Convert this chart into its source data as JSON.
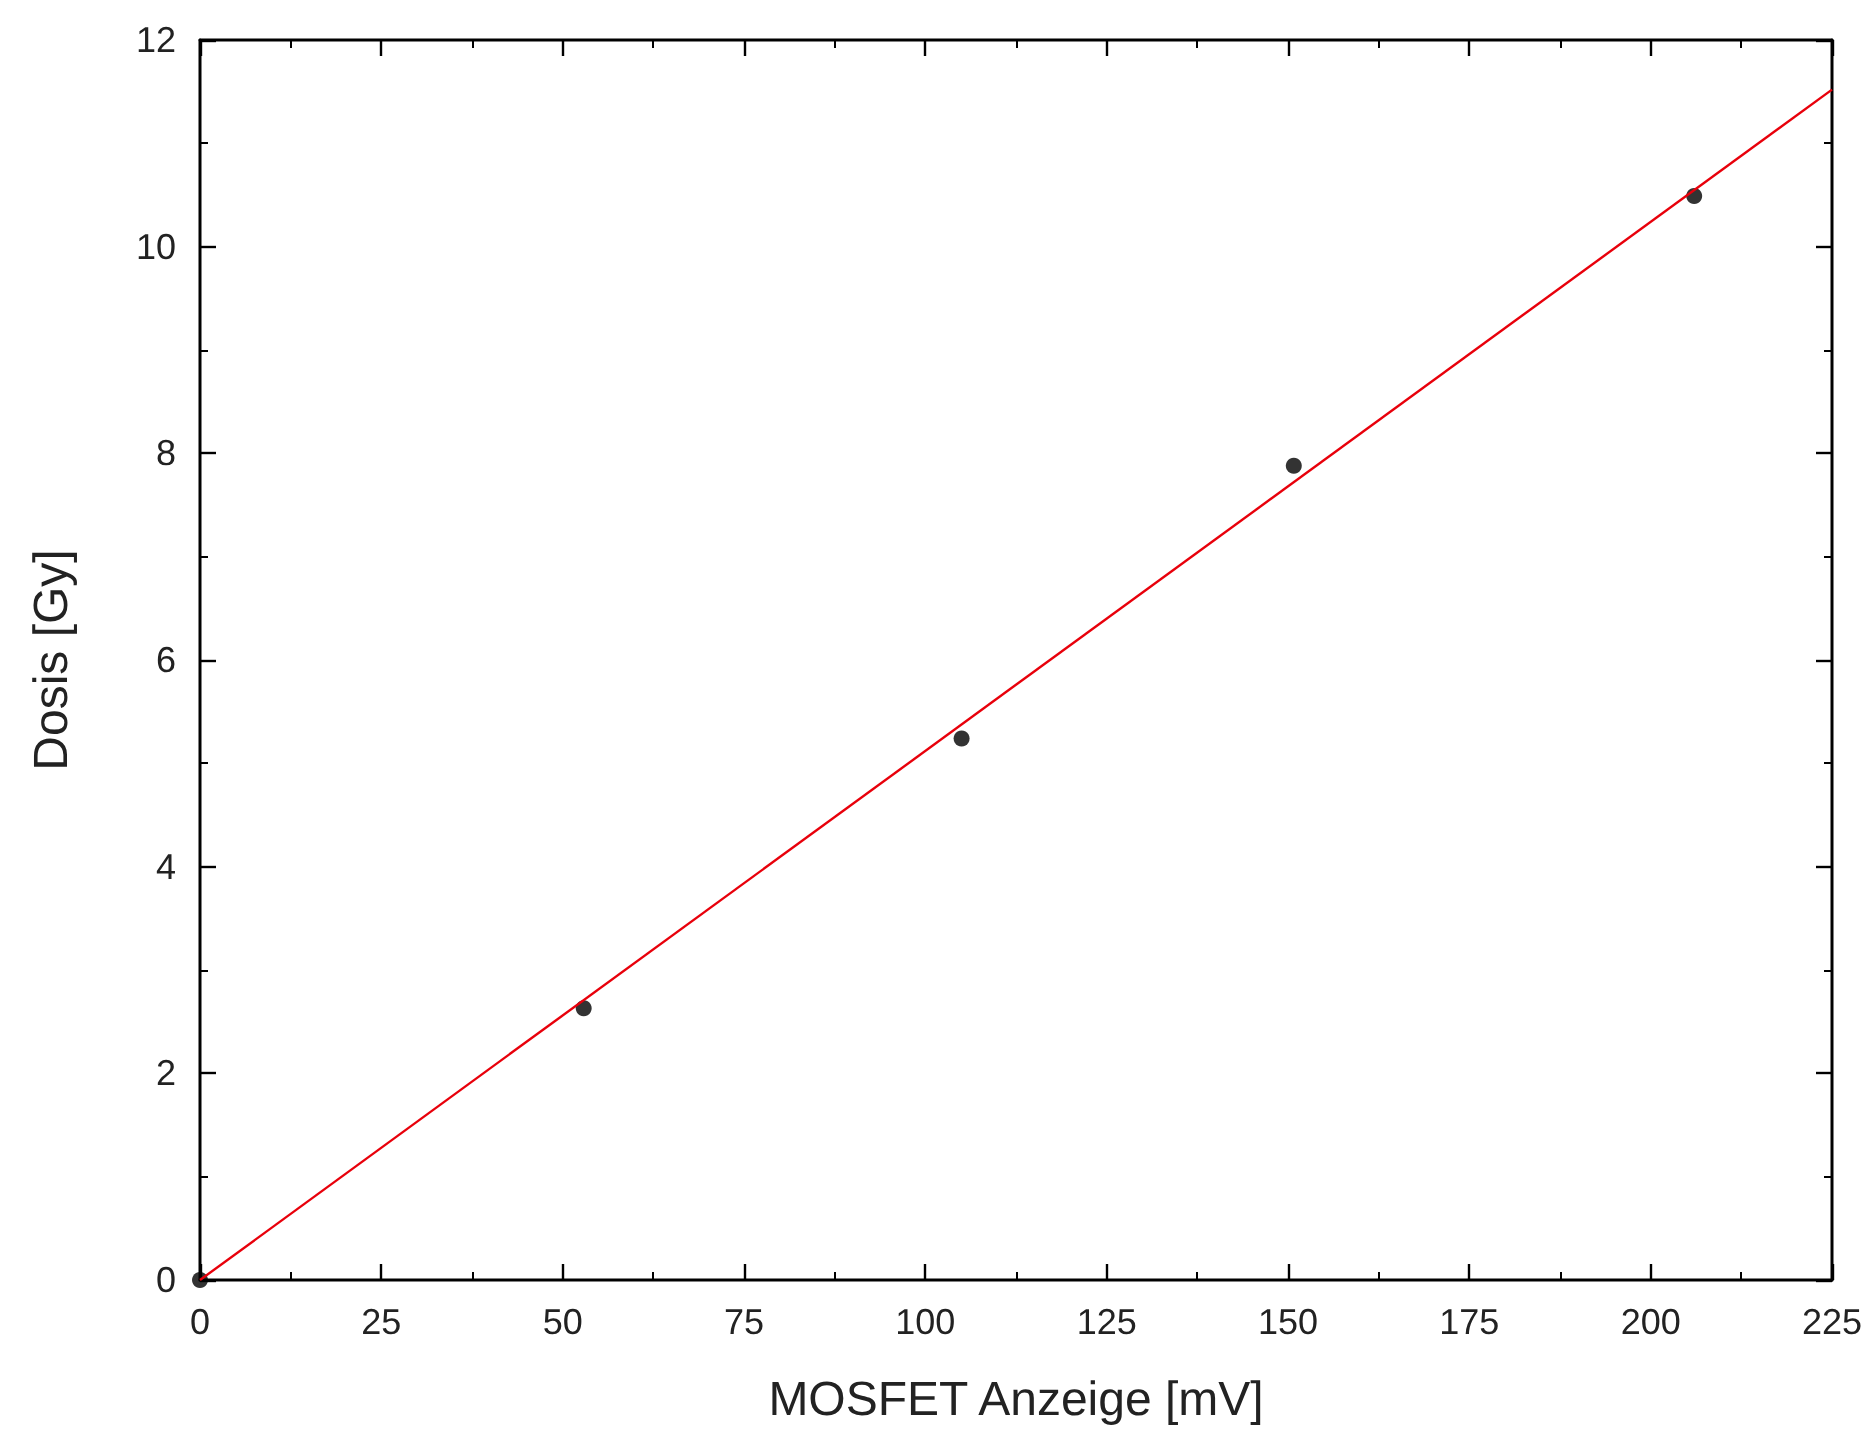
{
  "chart_data": {
    "type": "scatter",
    "xlabel": "MOSFET Anzeige [mV]",
    "ylabel": "Dosis [Gy]",
    "x": [
      0,
      52.9,
      105,
      150.8,
      206
    ],
    "series": [
      {
        "color": "#000000",
        "values": [
          0,
          2.63,
          5.24,
          7.88,
          10.49
        ]
      },
      {
        "type": "line",
        "color": "#e8000b",
        "x": [
          0,
          225
        ],
        "values": [
          0,
          11.52
        ],
        "marker": "none",
        "line_style": "solid"
      }
    ],
    "marker": "circle",
    "xlim": [
      0,
      225
    ],
    "xticks": [
      0,
      25,
      50,
      75,
      100,
      125,
      150,
      175,
      200,
      225
    ],
    "ylim": [
      0,
      12
    ],
    "yticks": [
      0,
      2,
      4,
      6,
      8,
      10,
      12
    ],
    "grid": false
  }
}
